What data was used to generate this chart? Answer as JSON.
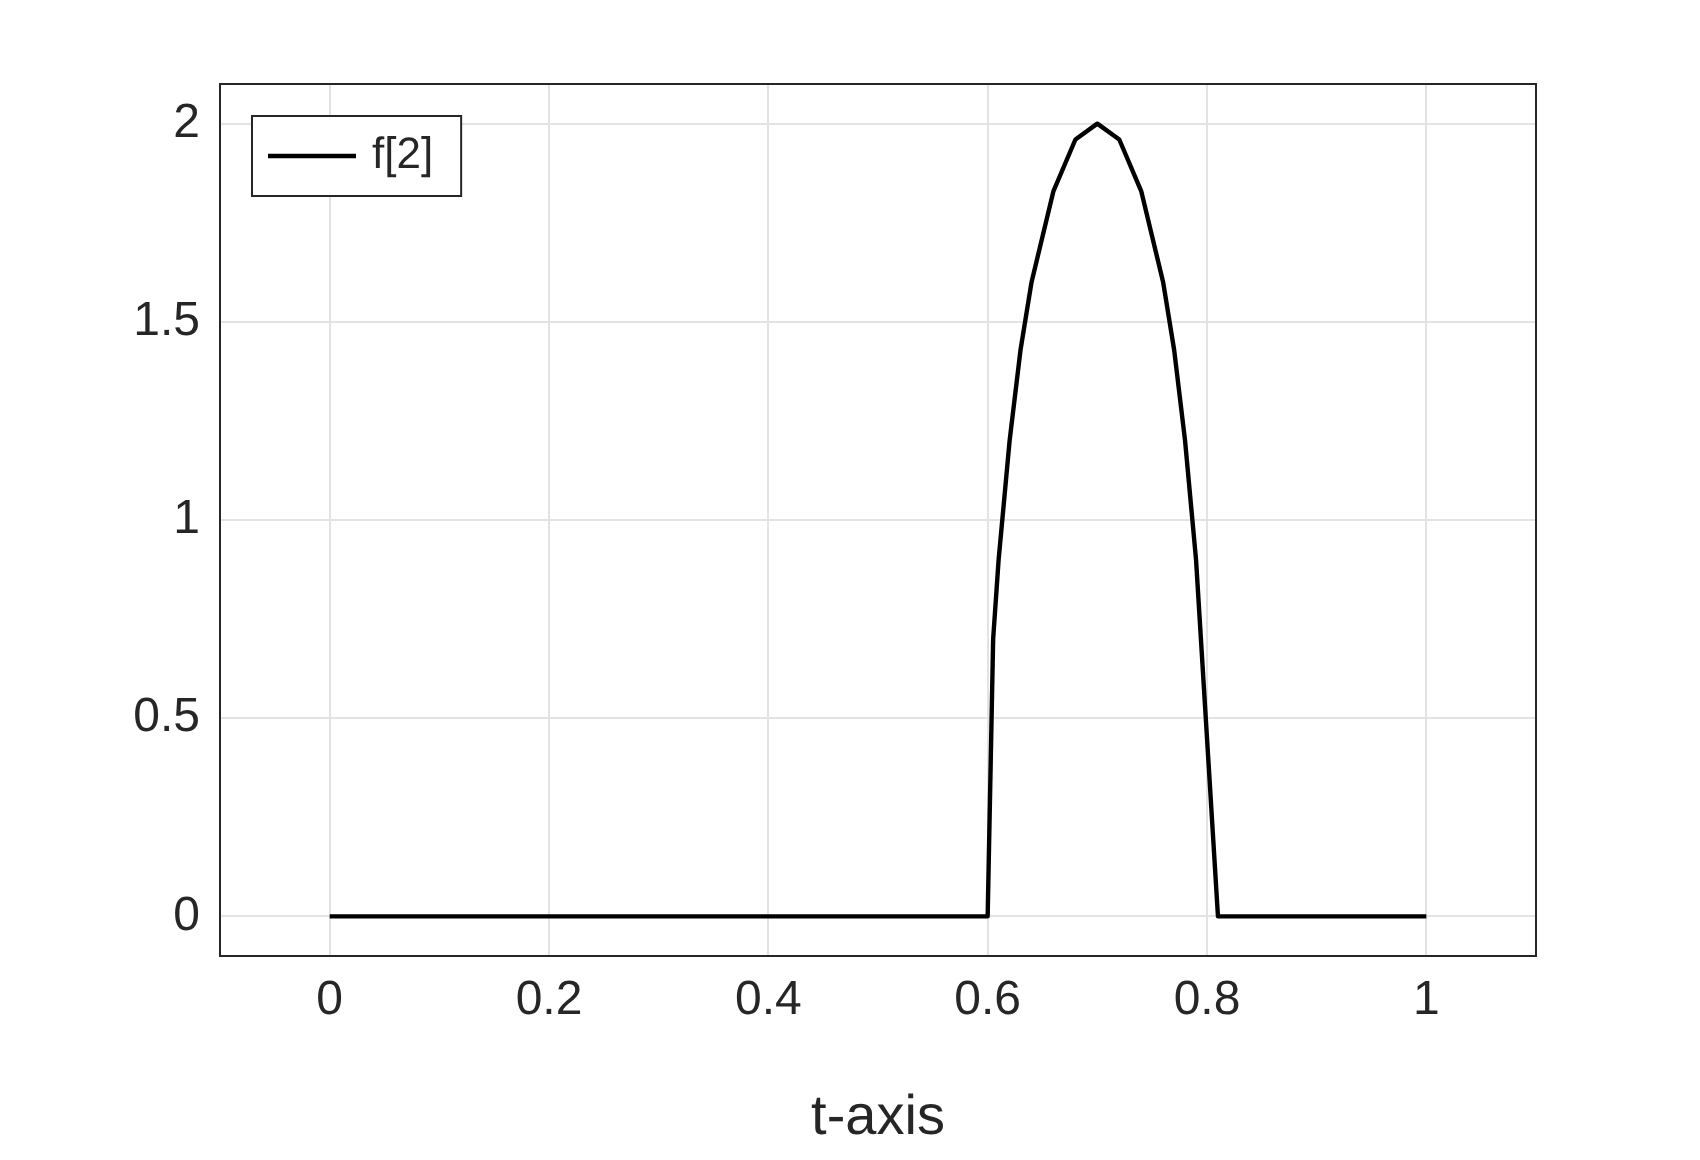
{
  "chart_data": {
    "type": "line",
    "xlabel": "t-axis",
    "xlim": [
      -0.1,
      1.1
    ],
    "xticks": [
      0,
      0.2,
      0.4,
      0.6,
      0.8,
      1
    ],
    "ylim": [
      -0.1,
      2.1
    ],
    "yticks": [
      0,
      0.5,
      1,
      1.5,
      2
    ],
    "grid": true,
    "legend": "top left",
    "marker": "none",
    "line_style": "solid",
    "series": [
      {
        "name": "f[2]",
        "color": "#000000",
        "x": [
          0,
          0.6,
          0.605,
          0.61,
          0.62,
          0.63,
          0.64,
          0.66,
          0.68,
          0.7,
          0.72,
          0.74,
          0.76,
          0.77,
          0.78,
          0.79,
          0.81,
          1
        ],
        "values": [
          0,
          0,
          0.7,
          0.9,
          1.2,
          1.43,
          1.6,
          1.83,
          1.96,
          2,
          1.96,
          1.83,
          1.6,
          1.43,
          1.2,
          0.9,
          0,
          0
        ]
      }
    ]
  }
}
